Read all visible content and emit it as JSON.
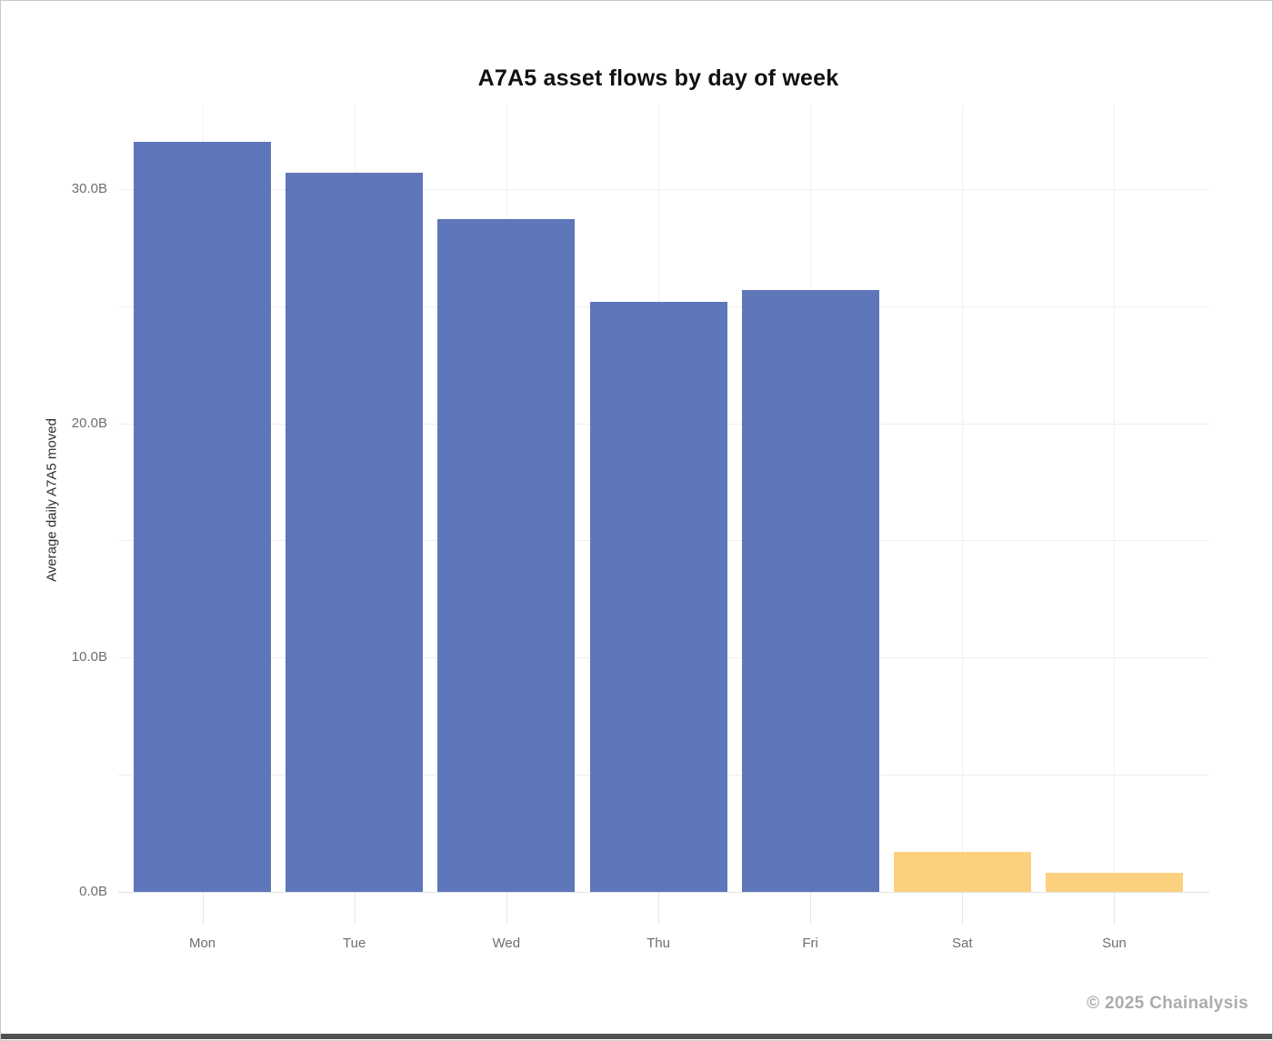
{
  "title": "A7A5 asset flows by day of week",
  "footer": {
    "credit": "© 2025 Chainalysis"
  },
  "chart_data": {
    "type": "bar",
    "title": "A7A5 asset flows by day of week",
    "categories": [
      "Mon",
      "Tue",
      "Wed",
      "Thu",
      "Fri",
      "Sat",
      "Sun"
    ],
    "values": [
      32.0,
      30.7,
      28.7,
      25.2,
      25.7,
      1.7,
      0.8
    ],
    "unit": "B",
    "xlabel": "",
    "ylabel": "Average daily A7A5 moved",
    "ylim": [
      0,
      33.6
    ],
    "yticks": [
      {
        "value": 0,
        "label": "0.0B"
      },
      {
        "value": 10,
        "label": "10.0B"
      },
      {
        "value": 20,
        "label": "20.0B"
      },
      {
        "value": 30,
        "label": "30.0B"
      }
    ],
    "minor_gridlines": [
      5,
      15,
      25
    ],
    "grid": true,
    "legend_position": "none",
    "colors": {
      "weekday_bar": "#5e76ba",
      "weekend_bar": "#fbd180",
      "gridline": "#efefef",
      "axis_text": "#6e6e6e",
      "title_text": "#111111",
      "credit_text": "#acacac"
    },
    "bar_colors": [
      "#5e76ba",
      "#5e76ba",
      "#5e76ba",
      "#5e76ba",
      "#5e76ba",
      "#fbd180",
      "#fbd180"
    ]
  }
}
